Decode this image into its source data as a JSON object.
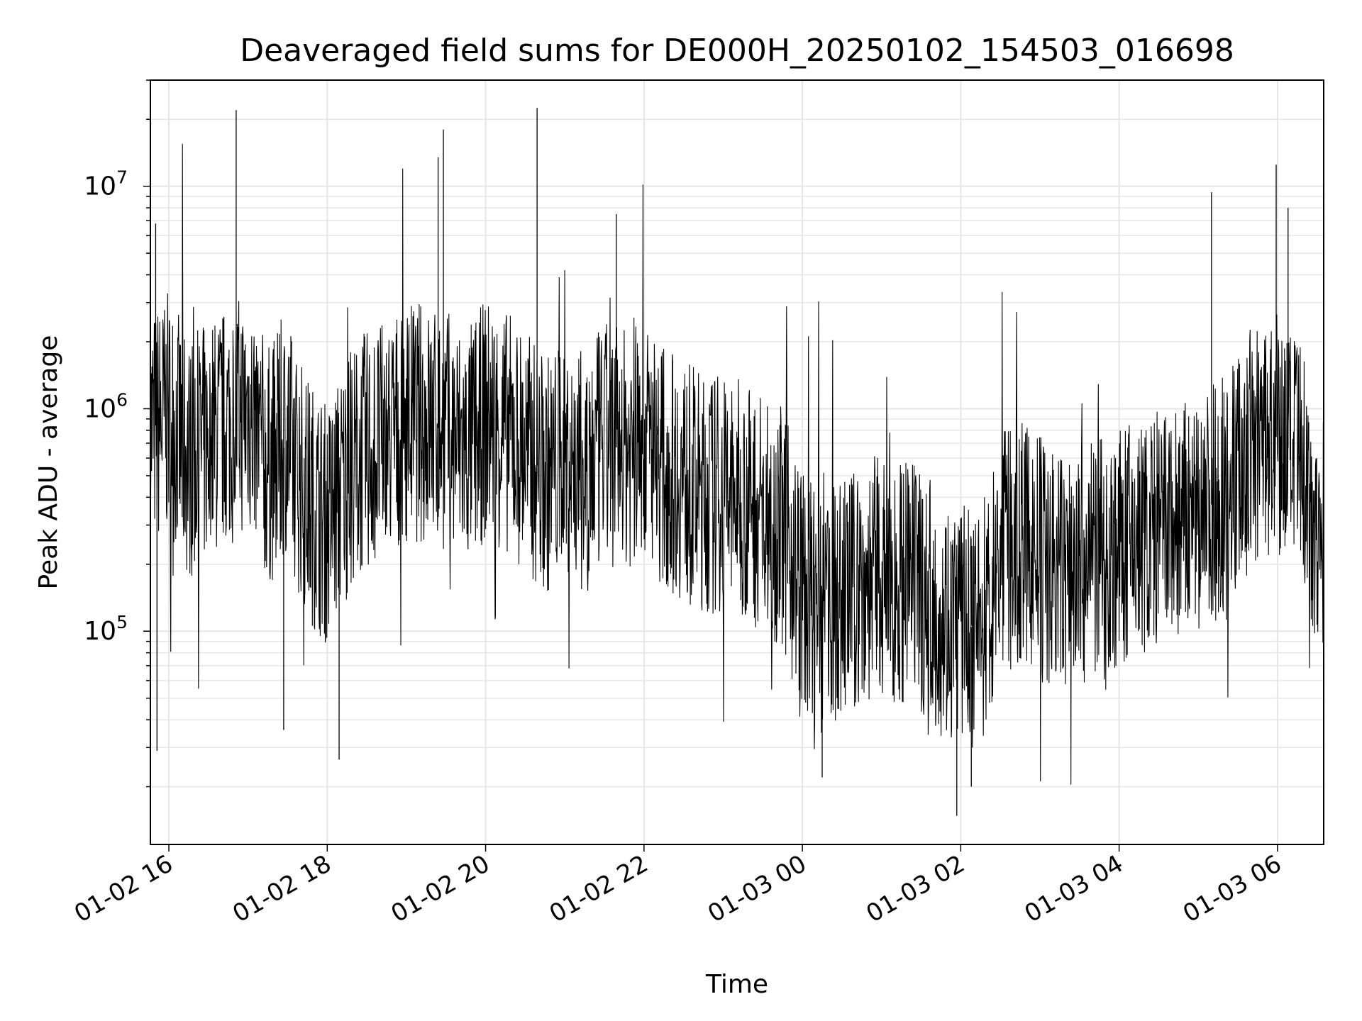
{
  "chart_data": {
    "type": "line",
    "title": "Deaveraged field sums for DE000H_20250102_154503_016698",
    "xlabel": "Time",
    "ylabel": "Peak ADU - average",
    "yscale": "log",
    "ylim": [
      11000,
      30000000
    ],
    "xlim": [
      "2025-01-02 15:46",
      "2025-01-03 06:35"
    ],
    "grid": true,
    "x_tick_labels": [
      "01-02 16",
      "01-02 18",
      "01-02 20",
      "01-02 22",
      "01-03 00",
      "01-03 02",
      "01-03 04",
      "01-03 06"
    ],
    "y_tick_labels": [
      {
        "base": "10",
        "exp": "5"
      },
      {
        "base": "10",
        "exp": "6"
      },
      {
        "base": "10",
        "exp": "7"
      }
    ],
    "line_color": "#000000",
    "series": [
      {
        "x": [
          "2025-01-02 15:46",
          "2025-01-02 16:00",
          "2025-01-02 16:15",
          "2025-01-02 16:30",
          "2025-01-02 16:45",
          "2025-01-02 17:00",
          "2025-01-02 17:15",
          "2025-01-02 17:30",
          "2025-01-02 17:45",
          "2025-01-02 18:00",
          "2025-01-02 18:15",
          "2025-01-02 18:30",
          "2025-01-02 18:45",
          "2025-01-02 19:00",
          "2025-01-02 19:15",
          "2025-01-02 19:30",
          "2025-01-02 19:45",
          "2025-01-02 20:00",
          "2025-01-02 20:15",
          "2025-01-02 20:30",
          "2025-01-02 20:45",
          "2025-01-02 21:00",
          "2025-01-02 21:15",
          "2025-01-02 21:30",
          "2025-01-02 21:45",
          "2025-01-02 22:00",
          "2025-01-02 22:15",
          "2025-01-02 22:30",
          "2025-01-02 22:45",
          "2025-01-02 23:00",
          "2025-01-02 23:15",
          "2025-01-02 23:30",
          "2025-01-02 23:45",
          "2025-01-03 00:00",
          "2025-01-03 00:15",
          "2025-01-03 00:30",
          "2025-01-03 00:45",
          "2025-01-03 01:00",
          "2025-01-03 01:15",
          "2025-01-03 01:30",
          "2025-01-03 01:45",
          "2025-01-03 02:00",
          "2025-01-03 02:15",
          "2025-01-03 02:30",
          "2025-01-03 02:45",
          "2025-01-03 03:00",
          "2025-01-03 03:15",
          "2025-01-03 03:30",
          "2025-01-03 03:45",
          "2025-01-03 04:00",
          "2025-01-03 04:15",
          "2025-01-03 04:30",
          "2025-01-03 04:45",
          "2025-01-03 05:00",
          "2025-01-03 05:15",
          "2025-01-03 05:30",
          "2025-01-03 05:45",
          "2025-01-03 06:00",
          "2025-01-03 06:15",
          "2025-01-03 06:35"
        ],
        "y": [
          800000,
          950000,
          600000,
          700000,
          850000,
          1000000,
          550000,
          700000,
          400000,
          300000,
          500000,
          650000,
          700000,
          900000,
          850000,
          800000,
          650000,
          900000,
          800000,
          650000,
          500000,
          600000,
          500000,
          700000,
          650000,
          750000,
          550000,
          480000,
          400000,
          420000,
          380000,
          350000,
          300000,
          150000,
          120000,
          140000,
          160000,
          180000,
          170000,
          150000,
          120000,
          110000,
          100000,
          220000,
          250000,
          220000,
          180000,
          200000,
          210000,
          230000,
          260000,
          280000,
          300000,
          320000,
          400000,
          550000,
          700000,
          750000,
          600000,
          250000
        ],
        "spikes": [
          {
            "x": "2025-01-02 15:50",
            "y": 6800000
          },
          {
            "x": "2025-01-02 15:51",
            "y": 29000
          },
          {
            "x": "2025-01-02 16:51",
            "y": 22000000
          },
          {
            "x": "2025-01-02 17:27",
            "y": 36000
          },
          {
            "x": "2025-01-02 18:09",
            "y": 26500
          },
          {
            "x": "2025-01-02 19:24",
            "y": 13500000
          },
          {
            "x": "2025-01-02 19:28",
            "y": 18000000
          },
          {
            "x": "2025-01-02 20:39",
            "y": 22500000
          },
          {
            "x": "2025-01-02 21:39",
            "y": 7500000
          },
          {
            "x": "2025-01-03 00:15",
            "y": 22000
          },
          {
            "x": "2025-01-03 01:57",
            "y": 14800
          },
          {
            "x": "2025-01-03 02:08",
            "y": 20000
          },
          {
            "x": "2025-01-03 05:10",
            "y": 9400000
          },
          {
            "x": "2025-01-03 05:59",
            "y": 12500000
          },
          {
            "x": "2025-01-03 06:08",
            "y": 8000000
          }
        ]
      }
    ]
  }
}
